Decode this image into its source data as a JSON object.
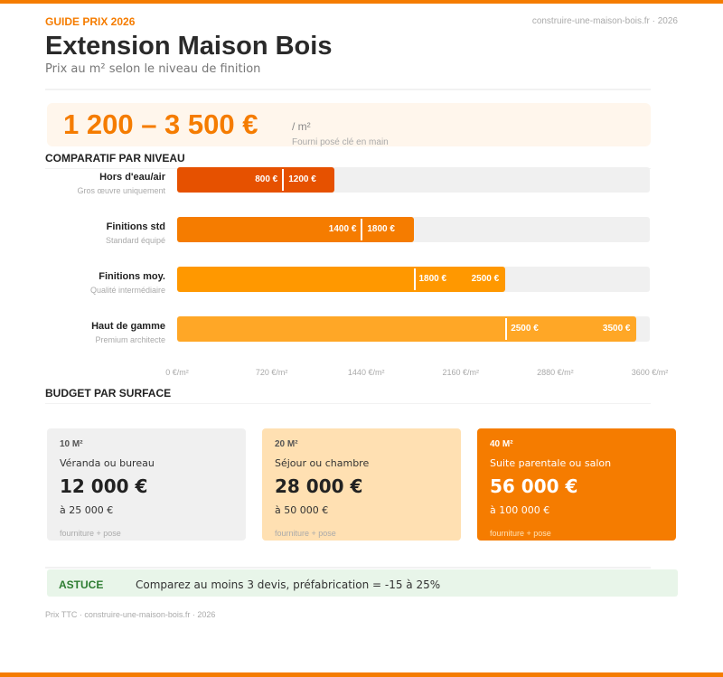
{
  "header": {
    "kicker": "GUIDE PRIX 2026",
    "site": "construire-une-maison-bois.fr · 2026",
    "title": "Extension Maison Bois",
    "subtitle": "Prix au m² selon le niveau de finition"
  },
  "hero": {
    "range": "1 200 – 3 500 €",
    "unit": "/ m²",
    "note": "Fourni posé clé en main"
  },
  "sections": {
    "compare": "COMPARATIF PAR NIVEAU",
    "budget": "BUDGET PAR SURFACE"
  },
  "chart_data": {
    "type": "bar",
    "orientation": "horizontal",
    "range_bars": true,
    "xlim": [
      0,
      3600
    ],
    "ticks": [
      "0 €/m²",
      "720 €/m²",
      "1440 €/m²",
      "2160 €/m²",
      "2880 €/m²",
      "3600 €/m²"
    ],
    "tick_values": [
      0,
      720,
      1440,
      2160,
      2880,
      3600
    ],
    "rows": [
      {
        "label": "Hors d'eau/air",
        "sub": "Gros œuvre uniquement",
        "low": 800,
        "high": 1200,
        "low_label": "800 €",
        "high_label": "1200 €",
        "color": "#e65100"
      },
      {
        "label": "Finitions std",
        "sub": "Standard équipé",
        "low": 1400,
        "high": 1800,
        "low_label": "1400 €",
        "high_label": "1800 €",
        "color": "#f57c00"
      },
      {
        "label": "Finitions moy.",
        "sub": "Qualité intermédiaire",
        "low": 1800,
        "high": 2500,
        "low_label": "1800 €",
        "high_label": "2500 €",
        "color": "#ff9800"
      },
      {
        "label": "Haut de gamme",
        "sub": "Premium architecte",
        "low": 2500,
        "high": 3500,
        "low_label": "2500 €",
        "high_label": "3500 €",
        "color": "#ffa726"
      }
    ]
  },
  "cards": [
    {
      "size": "10 M²",
      "desc": "Véranda ou bureau",
      "price": "12 000 €",
      "to": "à 25 000 €",
      "foot": "fourniture + pose",
      "bg": "#f0f0f0"
    },
    {
      "size": "20 M²",
      "desc": "Séjour ou chambre",
      "price": "28 000 €",
      "to": "à 50 000 €",
      "foot": "fourniture + pose",
      "bg": "#ffe0b2"
    },
    {
      "size": "40 M²",
      "desc": "Suite parentale ou salon",
      "price": "56 000 €",
      "to": "à 100 000 €",
      "foot": "fourniture + pose",
      "bg": "#f57c00"
    }
  ],
  "tip": {
    "label": "ASTUCE",
    "text": "Comparez au moins 3 devis, préfabrication = -15 à 25%"
  },
  "footer": "Prix TTC · construire-une-maison-bois.fr · 2026"
}
